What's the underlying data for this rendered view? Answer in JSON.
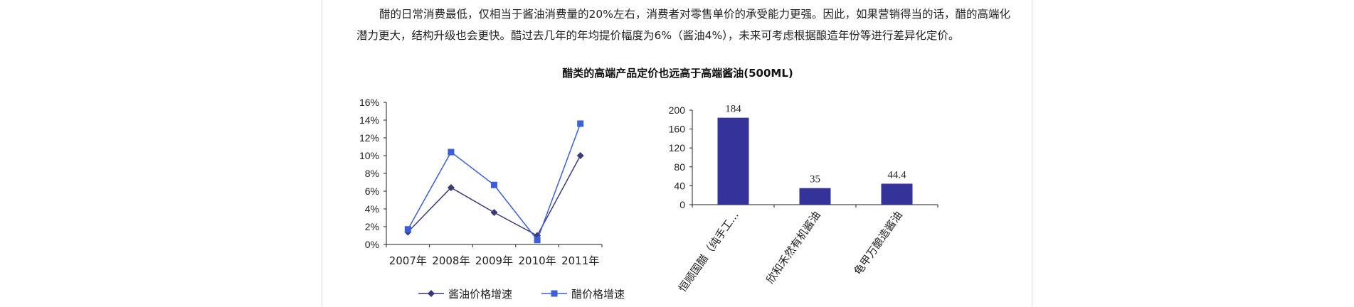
{
  "paragraph": "醋的日常消费最低，仅相当于酱油消费量的20%左右，消费者对零售单价的承受能力更强。因此，如果营销得当的话，醋的高端化潜力更大，结构升级也会更快。醋过去几年的年均提价幅度为6%（酱油4%），未来可考虑根据酿造年份等进行差异化定价。",
  "figure_title": "醋类的高端产品定价也远高于高端酱油(500ML)",
  "colors": {
    "soy": "#3a3a7a",
    "vinegar": "#3a5fd9",
    "bar": "#333399"
  },
  "chart_data": [
    {
      "type": "line",
      "categories": [
        "2007年",
        "2008年",
        "2009年",
        "2010年",
        "2011年"
      ],
      "series": [
        {
          "name": "酱油价格增速",
          "values": [
            1.4,
            6.4,
            3.6,
            1.0,
            10.0
          ],
          "marker": "diamond"
        },
        {
          "name": "醋价格增速",
          "values": [
            1.7,
            10.4,
            6.7,
            0.5,
            13.6
          ],
          "marker": "square"
        }
      ],
      "ylim": [
        0,
        16
      ],
      "yticks": [
        "0%",
        "2%",
        "4%",
        "6%",
        "8%",
        "10%",
        "12%",
        "14%",
        "16%"
      ],
      "legend_position": "bottom"
    },
    {
      "type": "bar",
      "categories": [
        "恒顺国醋（纯手工...",
        "欣和禾然有机酱油",
        "龟甲万酿造酱油"
      ],
      "values": [
        184,
        35,
        44.4
      ],
      "value_labels": [
        "184",
        "35",
        "44.4"
      ],
      "ylim": [
        0,
        200
      ],
      "yticks": [
        "0",
        "40",
        "80",
        "120",
        "160",
        "200"
      ]
    }
  ]
}
